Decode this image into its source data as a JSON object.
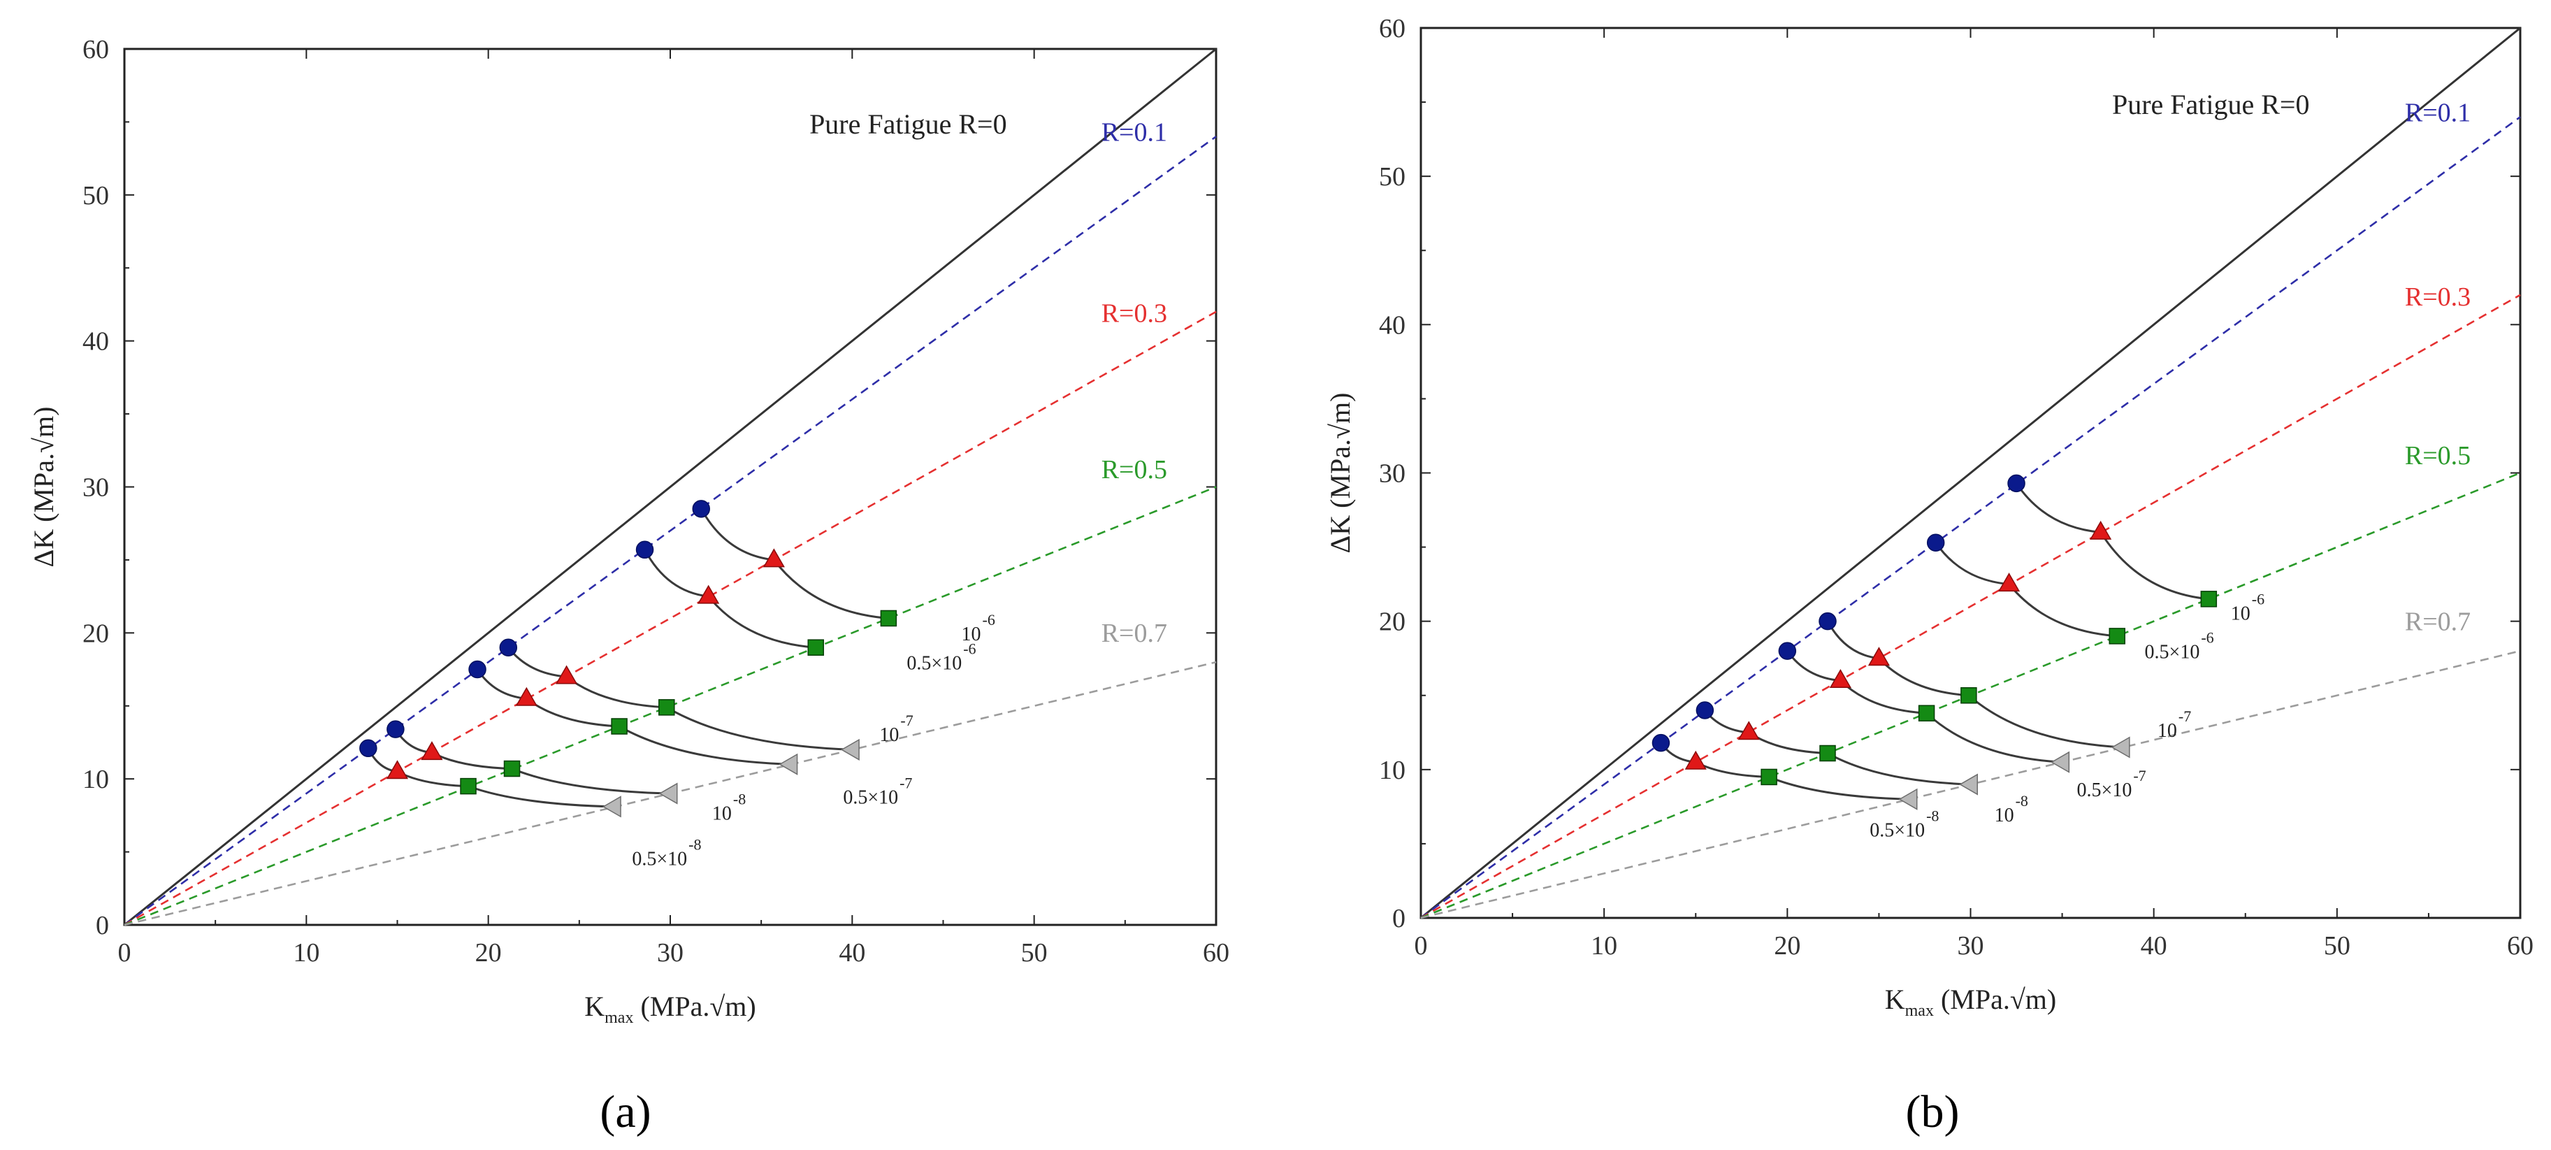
{
  "figure": {
    "panels": [
      "(a)",
      "(b)"
    ]
  },
  "chart_data": [
    {
      "type": "scatter",
      "panel_label": "(a)",
      "xlabel_main": "K",
      "xlabel_sub": "max",
      "xlabel_units": "(MPa.√m)",
      "ylabel": "ΔK (MPa.√m)",
      "xlim": [
        0,
        60
      ],
      "ylim": [
        0,
        60
      ],
      "xticks": [
        0,
        10,
        20,
        30,
        40,
        50,
        60
      ],
      "yticks": [
        0,
        10,
        20,
        30,
        40,
        50,
        60
      ],
      "reference_lines": [
        {
          "label": "Pure Fatigue R=0",
          "R": 0,
          "color": "#333333",
          "style": "solid"
        },
        {
          "label": "R=0.1",
          "R": 0.1,
          "color": "#2e2ea8",
          "style": "dashed"
        },
        {
          "label": "R=0.3",
          "R": 0.3,
          "color": "#e53030",
          "style": "dashed"
        },
        {
          "label": "R=0.5",
          "R": 0.5,
          "color": "#2a9a2a",
          "style": "dashed"
        },
        {
          "label": "R=0.7",
          "R": 0.7,
          "color": "#9c9c9c",
          "style": "dashed"
        }
      ],
      "markers": {
        "R=0.1": {
          "shape": "circle",
          "color": "#0a1a8c"
        },
        "R=0.3": {
          "shape": "triangle-up",
          "color": "#e01818"
        },
        "R=0.5": {
          "shape": "square",
          "color": "#148a14"
        },
        "R=0.7": {
          "shape": "triangle-left",
          "color": "#b8b8b8"
        }
      },
      "series": [
        {
          "name": "10",
          "exp": "-6",
          "points": [
            [
              31.7,
              28.5
            ],
            [
              35.7,
              25.0
            ],
            [
              42.0,
              21.0
            ]
          ]
        },
        {
          "name": "0.5×10",
          "exp": "-6",
          "points": [
            [
              28.6,
              25.7
            ],
            [
              32.1,
              22.5
            ],
            [
              38.0,
              19.0
            ]
          ]
        },
        {
          "name": "10",
          "exp": "-7",
          "points": [
            [
              21.1,
              19.0
            ],
            [
              24.3,
              17.0
            ],
            [
              29.8,
              14.9
            ],
            [
              40.0,
              12.0
            ]
          ]
        },
        {
          "name": "0.5×10",
          "exp": "-7",
          "points": [
            [
              19.4,
              17.5
            ],
            [
              22.1,
              15.5
            ],
            [
              27.2,
              13.6
            ],
            [
              36.6,
              11.0
            ]
          ]
        },
        {
          "name": "10",
          "exp": "-8",
          "points": [
            [
              14.9,
              13.4
            ],
            [
              16.9,
              11.8
            ],
            [
              21.3,
              10.7
            ],
            [
              30.0,
              9.0
            ]
          ]
        },
        {
          "name": "0.5×10",
          "exp": "-8",
          "points": [
            [
              13.4,
              12.1
            ],
            [
              15.0,
              10.5
            ],
            [
              18.9,
              9.5
            ],
            [
              26.9,
              8.1
            ]
          ]
        }
      ],
      "rate_labels": [
        {
          "text": "10",
          "exp": "-6",
          "at": [
            46.0,
            19.5
          ]
        },
        {
          "text": "0.5×10",
          "exp": "-6",
          "at": [
            43.0,
            17.5
          ]
        },
        {
          "text": "10",
          "exp": "-7",
          "at": [
            41.5,
            12.6
          ]
        },
        {
          "text": "0.5×10",
          "exp": "-7",
          "at": [
            39.5,
            8.3
          ]
        },
        {
          "text": "10",
          "exp": "-8",
          "at": [
            32.3,
            7.2
          ]
        },
        {
          "text": "0.5×10",
          "exp": "-8",
          "at": [
            27.9,
            4.1
          ]
        }
      ]
    },
    {
      "type": "scatter",
      "panel_label": "(b)",
      "xlabel_main": "K",
      "xlabel_sub": "max",
      "xlabel_units": "(MPa.√m)",
      "ylabel": "ΔK (MPa.√m)",
      "xlim": [
        0,
        60
      ],
      "ylim": [
        0,
        60
      ],
      "xticks": [
        0,
        10,
        20,
        30,
        40,
        50,
        60
      ],
      "yticks": [
        0,
        10,
        20,
        30,
        40,
        50,
        60
      ],
      "reference_lines": [
        {
          "label": "Pure Fatigue R=0",
          "R": 0,
          "color": "#333333",
          "style": "solid"
        },
        {
          "label": "R=0.1",
          "R": 0.1,
          "color": "#2e2ea8",
          "style": "dashed"
        },
        {
          "label": "R=0.3",
          "R": 0.3,
          "color": "#e53030",
          "style": "dashed"
        },
        {
          "label": "R=0.5",
          "R": 0.5,
          "color": "#2a9a2a",
          "style": "dashed"
        },
        {
          "label": "R=0.7",
          "R": 0.7,
          "color": "#9c9c9c",
          "style": "dashed"
        }
      ],
      "markers": {
        "R=0.1": {
          "shape": "circle",
          "color": "#0a1a8c"
        },
        "R=0.3": {
          "shape": "triangle-up",
          "color": "#e01818"
        },
        "R=0.5": {
          "shape": "square",
          "color": "#148a14"
        },
        "R=0.7": {
          "shape": "triangle-left",
          "color": "#b8b8b8"
        }
      },
      "series": [
        {
          "name": "10",
          "exp": "-6",
          "points": [
            [
              32.5,
              29.3
            ],
            [
              37.1,
              26.0
            ],
            [
              43.0,
              21.5
            ]
          ]
        },
        {
          "name": "0.5×10",
          "exp": "-6",
          "points": [
            [
              28.1,
              25.3
            ],
            [
              32.1,
              22.5
            ],
            [
              38.0,
              19.0
            ]
          ]
        },
        {
          "name": "10",
          "exp": "-7",
          "points": [
            [
              22.2,
              20.0
            ],
            [
              25.0,
              17.5
            ],
            [
              29.9,
              15.0
            ],
            [
              38.3,
              11.5
            ]
          ]
        },
        {
          "name": "0.5×10",
          "exp": "-7",
          "points": [
            [
              20.0,
              18.0
            ],
            [
              22.9,
              16.0
            ],
            [
              27.6,
              13.8
            ],
            [
              35.0,
              10.5
            ]
          ]
        },
        {
          "name": "10",
          "exp": "-8",
          "points": [
            [
              15.5,
              14.0
            ],
            [
              17.9,
              12.5
            ],
            [
              22.2,
              11.1
            ],
            [
              30.0,
              9.0
            ]
          ]
        },
        {
          "name": "0.5×10",
          "exp": "-8",
          "points": [
            [
              13.1,
              11.8
            ],
            [
              15.0,
              10.5
            ],
            [
              19.0,
              9.5
            ],
            [
              26.7,
              8.0
            ]
          ]
        }
      ],
      "rate_labels": [
        {
          "text": "10",
          "exp": "-6",
          "at": [
            44.2,
            20.1
          ]
        },
        {
          "text": "0.5×10",
          "exp": "-6",
          "at": [
            39.5,
            17.5
          ]
        },
        {
          "text": "10",
          "exp": "-7",
          "at": [
            40.2,
            12.2
          ]
        },
        {
          "text": "0.5×10",
          "exp": "-7",
          "at": [
            35.8,
            8.2
          ]
        },
        {
          "text": "10",
          "exp": "-8",
          "at": [
            31.3,
            6.5
          ]
        },
        {
          "text": "0.5×10",
          "exp": "-8",
          "at": [
            24.5,
            5.5
          ]
        }
      ]
    }
  ]
}
